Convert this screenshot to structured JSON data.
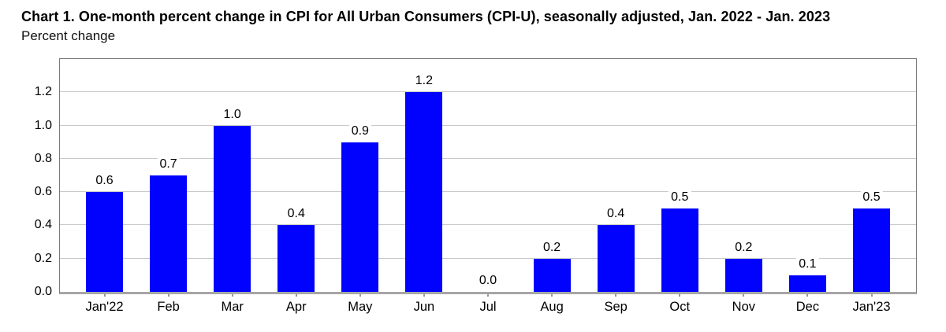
{
  "header": {
    "title": "Chart 1. One-month percent change in CPI for All Urban Consumers (CPI-U), seasonally adjusted, Jan. 2022 - Jan. 2023",
    "subtitle": "Percent change"
  },
  "chart_data": {
    "type": "bar",
    "title": "Chart 1. One-month percent change in CPI for All Urban Consumers (CPI-U), seasonally adjusted, Jan. 2022 - Jan. 2023",
    "ylabel": "Percent change",
    "xlabel": "",
    "categories": [
      "Jan'22",
      "Feb",
      "Mar",
      "Apr",
      "May",
      "Jun",
      "Jul",
      "Aug",
      "Sep",
      "Oct",
      "Nov",
      "Dec",
      "Jan'23"
    ],
    "values": [
      0.6,
      0.7,
      1.0,
      0.4,
      0.9,
      1.2,
      0.0,
      0.2,
      0.4,
      0.5,
      0.2,
      0.1,
      0.5
    ],
    "value_labels": [
      "0.6",
      "0.7",
      "1.0",
      "0.4",
      "0.9",
      "1.2",
      "0.0",
      "0.2",
      "0.4",
      "0.5",
      "0.2",
      "0.1",
      "0.5"
    ],
    "y_ticks": [
      0.0,
      0.2,
      0.4,
      0.6,
      0.8,
      1.0,
      1.2
    ],
    "y_tick_labels": [
      "0.0",
      "0.2",
      "0.4",
      "0.6",
      "0.8",
      "1.0",
      "1.2"
    ],
    "ylim": [
      0,
      1.4
    ],
    "grid": "horizontal",
    "legend": "none",
    "bar_color": "#0101FE",
    "gridline_color": "#c9c9c9",
    "axis_border_color": "#7a7a7a",
    "baseline_color": "#a6a6a6",
    "tick_mark_color": "#999999"
  }
}
